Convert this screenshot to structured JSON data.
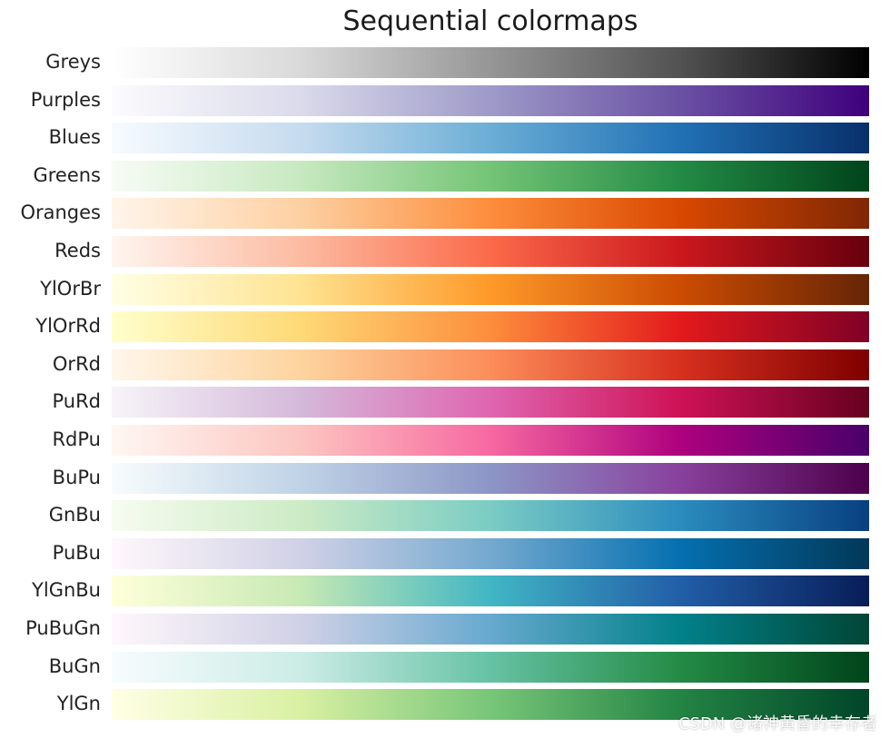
{
  "chart_data": {
    "type": "heatmap",
    "title": "Sequential colormaps",
    "colormaps": [
      {
        "name": "Greys",
        "stops": [
          "#ffffff",
          "#d9d9d9",
          "#969696",
          "#525252",
          "#000000"
        ]
      },
      {
        "name": "Purples",
        "stops": [
          "#fcfbfd",
          "#dadaeb",
          "#9e9ac8",
          "#6a51a3",
          "#3f007d"
        ]
      },
      {
        "name": "Blues",
        "stops": [
          "#f7fbff",
          "#c6dbef",
          "#6baed6",
          "#2171b5",
          "#08306b"
        ]
      },
      {
        "name": "Greens",
        "stops": [
          "#f7fcf5",
          "#c7e9c0",
          "#74c476",
          "#238b45",
          "#00441b"
        ]
      },
      {
        "name": "Oranges",
        "stops": [
          "#fff5eb",
          "#fdd0a2",
          "#fd8d3c",
          "#d94801",
          "#7f2704"
        ]
      },
      {
        "name": "Reds",
        "stops": [
          "#fff5f0",
          "#fcbba1",
          "#fb6a4a",
          "#cb181d",
          "#67000d"
        ]
      },
      {
        "name": "YlOrBr",
        "stops": [
          "#ffffe5",
          "#fee391",
          "#fe9929",
          "#cc4c02",
          "#662506"
        ]
      },
      {
        "name": "YlOrRd",
        "stops": [
          "#ffffcc",
          "#fed976",
          "#fd8d3c",
          "#e31a1c",
          "#800026"
        ]
      },
      {
        "name": "OrRd",
        "stops": [
          "#fff7ec",
          "#fdd49e",
          "#fc8d59",
          "#d7301f",
          "#7f0000"
        ]
      },
      {
        "name": "PuRd",
        "stops": [
          "#f7f4f9",
          "#d4b9da",
          "#df65b0",
          "#ce1256",
          "#67001f"
        ]
      },
      {
        "name": "RdPu",
        "stops": [
          "#fff7f3",
          "#fcc5c0",
          "#f768a1",
          "#ae017e",
          "#49006a"
        ]
      },
      {
        "name": "BuPu",
        "stops": [
          "#f7fcfd",
          "#bfd3e6",
          "#8c96c6",
          "#88419d",
          "#4d004b"
        ]
      },
      {
        "name": "GnBu",
        "stops": [
          "#f7fcf0",
          "#ccebc5",
          "#7bccc4",
          "#2b8cbe",
          "#084081"
        ]
      },
      {
        "name": "PuBu",
        "stops": [
          "#fff7fb",
          "#d0d1e6",
          "#74a9cf",
          "#0570b0",
          "#023858"
        ]
      },
      {
        "name": "YlGnBu",
        "stops": [
          "#ffffd9",
          "#c7e9b4",
          "#41b6c4",
          "#225ea8",
          "#081d58"
        ]
      },
      {
        "name": "PuBuGn",
        "stops": [
          "#fff7fb",
          "#d0d1e6",
          "#67a9cf",
          "#02818a",
          "#014636"
        ]
      },
      {
        "name": "BuGn",
        "stops": [
          "#f7fcfd",
          "#ccece6",
          "#66c2a4",
          "#238b45",
          "#00441b"
        ]
      },
      {
        "name": "YlGn",
        "stops": [
          "#ffffe5",
          "#d9f0a3",
          "#78c679",
          "#238443",
          "#004529"
        ]
      }
    ]
  },
  "watermark": "CSDN @诸神黄昏的幸存者"
}
